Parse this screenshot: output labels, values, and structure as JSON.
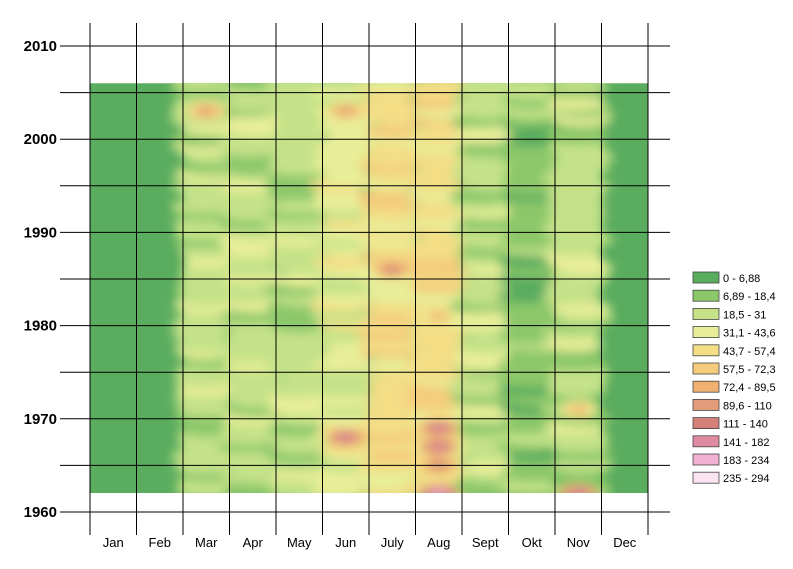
{
  "chart_data": {
    "type": "heatmap",
    "title": "",
    "xlabel": "",
    "ylabel": "",
    "x_categories": [
      "Jan",
      "Feb",
      "Mar",
      "Apr",
      "May",
      "Jun",
      "July",
      "Aug",
      "Sept",
      "Okt",
      "Nov",
      "Dec"
    ],
    "y_ticks": [
      "2010",
      "2000",
      "1990",
      "1980",
      "1970",
      "1960"
    ],
    "ylim": [
      1960,
      2010
    ],
    "data_year_range": [
      1962,
      2006
    ],
    "grid": true,
    "legend_position": "right",
    "legend": [
      {
        "label": "0 - 6,88",
        "color": "#5aac5e"
      },
      {
        "label": "6,89 - 18,4",
        "color": "#8cc86a"
      },
      {
        "label": "18,5 - 31",
        "color": "#c5e288"
      },
      {
        "label": "31,1 - 43,6",
        "color": "#e8ee98"
      },
      {
        "label": "43,7 - 57,4",
        "color": "#f3de86"
      },
      {
        "label": "57,5 - 72,3",
        "color": "#f4cc7c"
      },
      {
        "label": "72,4 - 89,5",
        "color": "#efb070"
      },
      {
        "label": "89,6 - 110",
        "color": "#e29c7a"
      },
      {
        "label": "111 - 140",
        "color": "#d48078"
      },
      {
        "label": "141 - 182",
        "color": "#e08aa2"
      },
      {
        "label": "183 - 234",
        "color": "#f2b0d2"
      },
      {
        "label": "235 - 294",
        "color": "#fbe4f2"
      }
    ],
    "monthly_profile": [
      {
        "month": "Jan",
        "typical_class": 0
      },
      {
        "month": "Feb",
        "typical_class": 0
      },
      {
        "month": "Mar",
        "typical_class": 2
      },
      {
        "month": "Apr",
        "typical_class": 2
      },
      {
        "month": "May",
        "typical_class": 2
      },
      {
        "month": "Jun",
        "typical_class": 3
      },
      {
        "month": "July",
        "typical_class": 4
      },
      {
        "month": "Aug",
        "typical_class": 4
      },
      {
        "month": "Sept",
        "typical_class": 2
      },
      {
        "month": "Okt",
        "typical_class": 1
      },
      {
        "month": "Nov",
        "typical_class": 2
      },
      {
        "month": "Dec",
        "typical_class": 0
      }
    ],
    "hotspots": [
      {
        "month": "July",
        "year": 1986,
        "class": 8
      },
      {
        "month": "Jun",
        "year": 1968,
        "class": 9
      },
      {
        "month": "Aug",
        "year": 1969,
        "class": 9
      },
      {
        "month": "Aug",
        "year": 1967,
        "class": 9
      },
      {
        "month": "Aug",
        "year": 1962,
        "class": 10
      },
      {
        "month": "Nov",
        "year": 1962,
        "class": 9
      },
      {
        "month": "Jun",
        "year": 2003,
        "class": 7
      },
      {
        "month": "Mar",
        "year": 2003,
        "class": 7
      },
      {
        "month": "Aug",
        "year": 1981,
        "class": 6
      },
      {
        "month": "Aug",
        "year": 1965,
        "class": 8
      },
      {
        "month": "Nov",
        "year": 1971,
        "class": 6
      }
    ]
  }
}
